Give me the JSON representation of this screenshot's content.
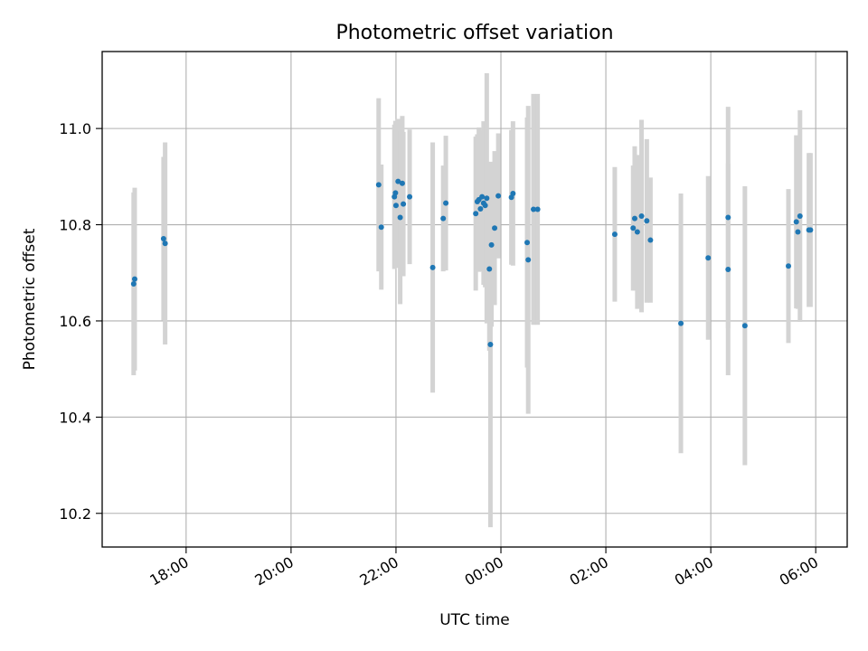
{
  "chart_data": {
    "type": "scatter",
    "title": "Photometric offset variation",
    "xlabel": "UTC time",
    "ylabel": "Photometric offset",
    "x_axis_kind": "time (hours relative to 00:00 UTC)",
    "xlim": [
      -7.6,
      6.6
    ],
    "ylim": [
      10.13,
      11.16
    ],
    "x_ticks": [
      -6,
      -4,
      -2,
      0,
      2,
      4,
      6
    ],
    "x_tick_labels": [
      "18:00",
      "20:00",
      "22:00",
      "00:00",
      "02:00",
      "04:00",
      "06:00"
    ],
    "y_ticks": [
      10.2,
      10.4,
      10.6,
      10.8,
      11.0
    ],
    "y_tick_labels": [
      "10.2",
      "10.4",
      "10.6",
      "10.8",
      "11.0"
    ],
    "grid": true,
    "legend": "none",
    "colors": {
      "point": "#1f77b4",
      "errorbar": "#d3d3d3",
      "grid": "#b0b0b0"
    },
    "points": [
      {
        "x": -7.0,
        "y": 10.677,
        "err": 0.19
      },
      {
        "x": -6.98,
        "y": 10.687,
        "err": 0.19
      },
      {
        "x": -6.43,
        "y": 10.771,
        "err": 0.17
      },
      {
        "x": -6.4,
        "y": 10.761,
        "err": 0.21
      },
      {
        "x": -2.33,
        "y": 10.883,
        "err": 0.18
      },
      {
        "x": -2.28,
        "y": 10.795,
        "err": 0.13
      },
      {
        "x": -2.03,
        "y": 10.858,
        "err": 0.15
      },
      {
        "x": -2.01,
        "y": 10.866,
        "err": 0.15
      },
      {
        "x": -2.0,
        "y": 10.84,
        "err": 0.13
      },
      {
        "x": -1.96,
        "y": 10.89,
        "err": 0.13
      },
      {
        "x": -1.92,
        "y": 10.815,
        "err": 0.18
      },
      {
        "x": -1.88,
        "y": 10.886,
        "err": 0.14
      },
      {
        "x": -1.86,
        "y": 10.843,
        "err": 0.15
      },
      {
        "x": -1.74,
        "y": 10.858,
        "err": 0.14
      },
      {
        "x": -1.3,
        "y": 10.711,
        "err": 0.26
      },
      {
        "x": -1.1,
        "y": 10.813,
        "err": 0.11
      },
      {
        "x": -1.05,
        "y": 10.845,
        "err": 0.14
      },
      {
        "x": -0.48,
        "y": 10.823,
        "err": 0.16
      },
      {
        "x": -0.45,
        "y": 10.848,
        "err": 0.14
      },
      {
        "x": -0.42,
        "y": 10.852,
        "err": 0.15
      },
      {
        "x": -0.39,
        "y": 10.833,
        "err": 0.13
      },
      {
        "x": -0.36,
        "y": 10.858,
        "err": 0.14
      },
      {
        "x": -0.33,
        "y": 10.845,
        "err": 0.17
      },
      {
        "x": -0.3,
        "y": 10.84,
        "err": 0.17
      },
      {
        "x": -0.27,
        "y": 10.855,
        "err": 0.26
      },
      {
        "x": -0.22,
        "y": 10.708,
        "err": 0.17
      },
      {
        "x": -0.2,
        "y": 10.551,
        "err": 0.38
      },
      {
        "x": -0.18,
        "y": 10.758,
        "err": 0.17
      },
      {
        "x": -0.12,
        "y": 10.793,
        "err": 0.16
      },
      {
        "x": -0.05,
        "y": 10.86,
        "err": 0.13
      },
      {
        "x": 0.2,
        "y": 10.857,
        "err": 0.14
      },
      {
        "x": 0.23,
        "y": 10.865,
        "err": 0.15
      },
      {
        "x": 0.5,
        "y": 10.763,
        "err": 0.26
      },
      {
        "x": 0.52,
        "y": 10.727,
        "err": 0.32
      },
      {
        "x": 0.62,
        "y": 10.832,
        "err": 0.24
      },
      {
        "x": 0.7,
        "y": 10.832,
        "err": 0.24
      },
      {
        "x": 2.17,
        "y": 10.78,
        "err": 0.14
      },
      {
        "x": 2.52,
        "y": 10.793,
        "err": 0.13
      },
      {
        "x": 2.55,
        "y": 10.813,
        "err": 0.15
      },
      {
        "x": 2.6,
        "y": 10.785,
        "err": 0.16
      },
      {
        "x": 2.68,
        "y": 10.818,
        "err": 0.2
      },
      {
        "x": 2.78,
        "y": 10.808,
        "err": 0.17
      },
      {
        "x": 2.85,
        "y": 10.768,
        "err": 0.13
      },
      {
        "x": 3.43,
        "y": 10.595,
        "err": 0.27
      },
      {
        "x": 3.95,
        "y": 10.731,
        "err": 0.17
      },
      {
        "x": 4.33,
        "y": 10.815,
        "err": 0.23
      },
      {
        "x": 4.33,
        "y": 10.707,
        "err": 0.22
      },
      {
        "x": 4.65,
        "y": 10.59,
        "err": 0.29
      },
      {
        "x": 5.48,
        "y": 10.714,
        "err": 0.16
      },
      {
        "x": 5.63,
        "y": 10.806,
        "err": 0.18
      },
      {
        "x": 5.66,
        "y": 10.785,
        "err": 0.16
      },
      {
        "x": 5.7,
        "y": 10.818,
        "err": 0.22
      },
      {
        "x": 5.87,
        "y": 10.789,
        "err": 0.16
      },
      {
        "x": 5.9,
        "y": 10.789,
        "err": 0.16
      }
    ]
  }
}
